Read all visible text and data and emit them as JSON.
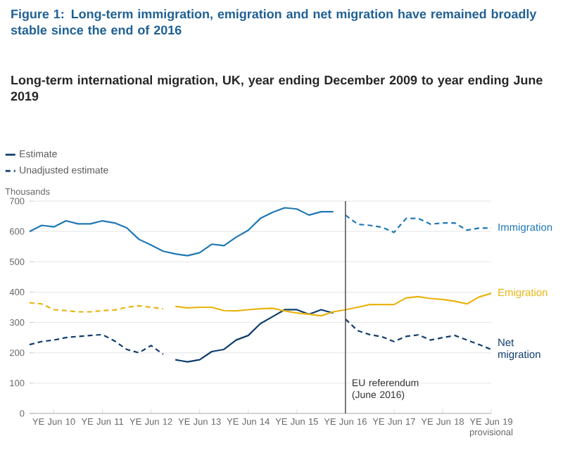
{
  "chart_data": {
    "type": "line",
    "title": "Figure 1: Long-term immigration, emigration and net migration have remained broadly stable since the end of 2016",
    "subtitle": "Long-term international migration, UK, year ending December 2009 to year ending June 2019",
    "ylabel": "Thousands",
    "x": [
      "2009-12",
      "2010-03",
      "2010-06",
      "2010-09",
      "2010-12",
      "2011-03",
      "2011-06",
      "2011-09",
      "2011-12",
      "2012-03",
      "2012-06",
      "2012-09",
      "2012-12",
      "2013-03",
      "2013-06",
      "2013-09",
      "2013-12",
      "2014-03",
      "2014-06",
      "2014-09",
      "2014-12",
      "2015-03",
      "2015-06",
      "2015-09",
      "2015-12",
      "2016-03",
      "2016-06",
      "2016-09",
      "2016-12",
      "2017-03",
      "2017-06",
      "2017-09",
      "2017-12",
      "2018-03",
      "2018-06",
      "2018-09",
      "2018-12",
      "2019-03",
      "2019-06"
    ],
    "series": [
      {
        "name": "Estimate",
        "color": "#0f3c6e",
        "line_style": "solid",
        "values": [
          null,
          null,
          null,
          null,
          null,
          null,
          null,
          null,
          null,
          null,
          null,
          null,
          177,
          170,
          177,
          204,
          211,
          242,
          257,
          296,
          319,
          342,
          342,
          327,
          342,
          331,
          null,
          null,
          null,
          null,
          null,
          null,
          null,
          null,
          null,
          null,
          null,
          null,
          null
        ]
      },
      {
        "name": "Unadjusted estimate",
        "color": "#0f3c6e",
        "line_style": "dashed",
        "values": [
          227,
          237,
          242,
          250,
          254,
          257,
          260,
          239,
          211,
          200,
          224,
          195,
          null,
          null,
          null,
          null,
          null,
          null,
          null,
          null,
          null,
          null,
          null,
          null,
          null,
          null,
          311,
          273,
          260,
          253,
          237,
          254,
          259,
          242,
          250,
          257,
          242,
          227,
          211
        ]
      },
      {
        "color": "#1f78b4",
        "line_style": "solid",
        "values": [
          600,
          620,
          615,
          635,
          625,
          625,
          635,
          628,
          612,
          574,
          555,
          535,
          526,
          520,
          530,
          558,
          553,
          581,
          604,
          643,
          663,
          678,
          674,
          654,
          665,
          665,
          null,
          null,
          null,
          null,
          null,
          null,
          null,
          null,
          null,
          null,
          null,
          null,
          null
        ]
      },
      {
        "color": "#1f78b4",
        "line_style": "dashed",
        "values": [
          null,
          null,
          null,
          null,
          null,
          null,
          null,
          null,
          null,
          null,
          null,
          null,
          null,
          null,
          null,
          null,
          null,
          null,
          null,
          null,
          null,
          null,
          null,
          null,
          null,
          null,
          654,
          624,
          620,
          614,
          597,
          643,
          643,
          624,
          628,
          628,
          604,
          611,
          611
        ]
      },
      {
        "color": "#e8b410",
        "line_style": "dashed",
        "values": [
          365,
          361,
          342,
          339,
          335,
          335,
          339,
          341,
          350,
          355,
          350,
          345,
          null,
          null,
          null,
          null,
          null,
          null,
          null,
          null,
          null,
          null,
          null,
          null,
          null,
          null,
          null,
          null,
          null,
          null,
          null,
          null,
          null,
          null,
          null,
          null,
          null,
          null,
          null
        ]
      },
      {
        "color": "#e8b410",
        "line_style": "solid",
        "values": [
          null,
          null,
          null,
          null,
          null,
          null,
          null,
          null,
          null,
          null,
          null,
          null,
          353,
          348,
          350,
          350,
          339,
          338,
          342,
          345,
          347,
          338,
          331,
          327,
          322,
          335,
          342,
          350,
          359,
          359,
          359,
          381,
          385,
          379,
          376,
          370,
          361,
          384,
          396
        ]
      }
    ],
    "xlim": [
      "2009-12",
      "2019-06"
    ],
    "xticks": [
      {
        "value": "2010-06",
        "label": "YE Jun 10"
      },
      {
        "value": "2011-06",
        "label": "YE Jun 11"
      },
      {
        "value": "2012-06",
        "label": "YE Jun 12"
      },
      {
        "value": "2013-06",
        "label": "YE Jun 13"
      },
      {
        "value": "2014-06",
        "label": "YE Jun 14"
      },
      {
        "value": "2015-06",
        "label": "YE Jun 15"
      },
      {
        "value": "2016-06",
        "label": "YE Jun 16"
      },
      {
        "value": "2017-06",
        "label": "YE Jun 17"
      },
      {
        "value": "2018-06",
        "label": "YE Jun 18"
      },
      {
        "value": "2019-06",
        "label": "YE Jun 19 provisional"
      }
    ],
    "ylim": [
      0,
      700
    ],
    "yticks": [
      0,
      100,
      200,
      300,
      400,
      500,
      600,
      700
    ],
    "ref_lines": [
      {
        "axis": "x",
        "value": "2016-06",
        "label": "EU referendum (June 2016)",
        "color": "#595959"
      }
    ],
    "annotations": [
      {
        "text": "Immigration",
        "x": "2019-06",
        "y": 611
      },
      {
        "text": "Emigration",
        "x": "2019-06",
        "y": 396
      },
      {
        "text": "Net migration",
        "x": "2019-06",
        "y": 211
      }
    ],
    "grid": "y",
    "legend": "top left",
    "marker": "none"
  }
}
